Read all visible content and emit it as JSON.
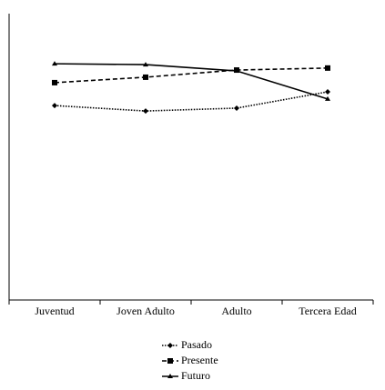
{
  "chart_data": {
    "type": "line",
    "categories": [
      "Juventud",
      "Joven Adulto",
      "Adulto",
      "Tercera Edad"
    ],
    "ylim": [
      0,
      100
    ],
    "series": [
      {
        "name": "Pasado",
        "color": "#000000",
        "line_style": "dotted",
        "marker": "diamond",
        "values": [
          67.9,
          66.0,
          67.0,
          72.7
        ]
      },
      {
        "name": "Presente",
        "color": "#000000",
        "line_style": "dashed",
        "marker": "square",
        "values": [
          75.9,
          77.8,
          80.3,
          81.0
        ]
      },
      {
        "name": "Futuro",
        "color": "#000000",
        "line_style": "solid",
        "marker": "triangle",
        "values": [
          82.5,
          82.2,
          80.0,
          70.2
        ]
      }
    ],
    "legend": "bottom"
  }
}
